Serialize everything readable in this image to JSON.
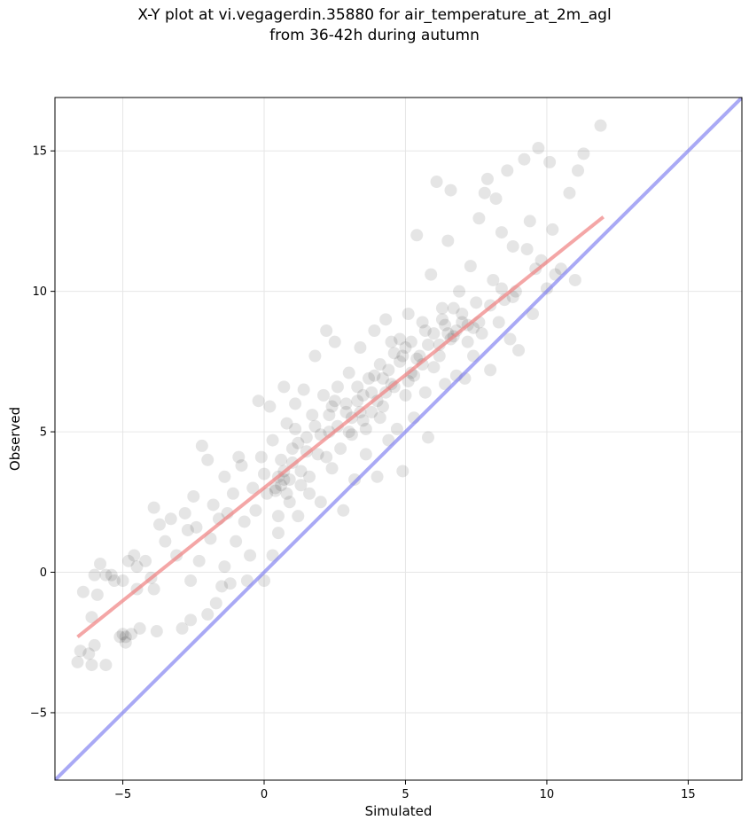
{
  "chart_data": {
    "type": "scatter",
    "title_lines": [
      "X-Y plot at vi.vegagerdin.35880 for air_temperature_at_2m_agl",
      "from 36-42h during autumn"
    ],
    "xlabel": "Simulated",
    "ylabel": "Observed",
    "xlim": [
      -7.4,
      16.9
    ],
    "ylim": [
      -7.4,
      16.9
    ],
    "xticks": [
      -5,
      0,
      5,
      10,
      15
    ],
    "yticks": [
      -5,
      0,
      5,
      10,
      15
    ],
    "xtick_labels": [
      "−5",
      "0",
      "5",
      "10",
      "15"
    ],
    "ytick_labels": [
      "−5",
      "0",
      "5",
      "10",
      "15"
    ],
    "grid": true,
    "colors": {
      "points": "#000000",
      "fit_line": "#f08080",
      "identity_line": "#7b7bf0",
      "grid": "#e6e6e6"
    },
    "identity_line": {
      "x": [
        -7.4,
        16.9
      ],
      "y": [
        -7.4,
        16.9
      ]
    },
    "fit_line": {
      "x": [
        -6.6,
        12.0
      ],
      "y": [
        -2.3,
        12.65
      ]
    },
    "points": [
      [
        -6.6,
        -3.2
      ],
      [
        -6.5,
        -2.8
      ],
      [
        -6.4,
        -0.7
      ],
      [
        -6.2,
        -2.9
      ],
      [
        -6.1,
        -1.6
      ],
      [
        -6.1,
        -3.3
      ],
      [
        -6.0,
        -0.1
      ],
      [
        -6.0,
        -2.6
      ],
      [
        -5.9,
        -0.8
      ],
      [
        -5.8,
        0.3
      ],
      [
        -5.6,
        -0.1
      ],
      [
        -5.6,
        -3.3
      ],
      [
        -5.4,
        -0.1
      ],
      [
        -5.3,
        -0.3
      ],
      [
        -5.1,
        -2.3
      ],
      [
        -5.0,
        -2.2
      ],
      [
        -5.0,
        -0.3
      ],
      [
        -4.9,
        -2.5
      ],
      [
        -4.9,
        -2.3
      ],
      [
        -4.8,
        0.4
      ],
      [
        -4.7,
        -2.2
      ],
      [
        -4.6,
        0.6
      ],
      [
        -4.5,
        -0.6
      ],
      [
        -4.5,
        0.2
      ],
      [
        -4.4,
        -2.0
      ],
      [
        -4.2,
        0.4
      ],
      [
        -4.0,
        -0.2
      ],
      [
        -3.9,
        -0.6
      ],
      [
        -3.9,
        2.3
      ],
      [
        -3.8,
        -2.1
      ],
      [
        -3.7,
        1.7
      ],
      [
        -3.5,
        1.1
      ],
      [
        -3.3,
        1.9
      ],
      [
        -3.1,
        0.6
      ],
      [
        -2.9,
        -2.0
      ],
      [
        -2.8,
        2.1
      ],
      [
        -2.7,
        1.5
      ],
      [
        -2.6,
        -0.3
      ],
      [
        -2.6,
        -1.7
      ],
      [
        -2.5,
        2.7
      ],
      [
        -2.4,
        1.6
      ],
      [
        -2.3,
        0.4
      ],
      [
        -2.2,
        4.5
      ],
      [
        -2.0,
        -1.5
      ],
      [
        -2.0,
        4.0
      ],
      [
        -1.9,
        1.2
      ],
      [
        -1.8,
        2.4
      ],
      [
        -1.7,
        -1.1
      ],
      [
        -1.6,
        1.9
      ],
      [
        -1.5,
        -0.5
      ],
      [
        -1.4,
        3.4
      ],
      [
        -1.4,
        0.2
      ],
      [
        -1.3,
        2.1
      ],
      [
        -1.2,
        -0.4
      ],
      [
        -1.1,
        2.8
      ],
      [
        -1.0,
        1.1
      ],
      [
        -0.9,
        4.1
      ],
      [
        -0.8,
        3.8
      ],
      [
        -0.7,
        1.8
      ],
      [
        -0.6,
        -0.3
      ],
      [
        -0.5,
        0.6
      ],
      [
        -0.4,
        3.0
      ],
      [
        -0.3,
        2.2
      ],
      [
        -0.2,
        6.1
      ],
      [
        -0.1,
        4.1
      ],
      [
        0.0,
        3.5
      ],
      [
        0.0,
        -0.3
      ],
      [
        0.1,
        2.8
      ],
      [
        0.2,
        5.9
      ],
      [
        0.3,
        0.6
      ],
      [
        0.3,
        4.7
      ],
      [
        0.4,
        3.0
      ],
      [
        0.5,
        1.4
      ],
      [
        0.5,
        2.0
      ],
      [
        0.6,
        4.0
      ],
      [
        0.7,
        6.6
      ],
      [
        0.7,
        3.3
      ],
      [
        0.8,
        5.3
      ],
      [
        0.9,
        2.5
      ],
      [
        1.0,
        4.4
      ],
      [
        1.1,
        6.0
      ],
      [
        1.2,
        2.0
      ],
      [
        1.3,
        3.6
      ],
      [
        1.4,
        6.5
      ],
      [
        1.5,
        4.8
      ],
      [
        1.6,
        2.8
      ],
      [
        1.7,
        5.6
      ],
      [
        1.8,
        7.7
      ],
      [
        1.9,
        4.2
      ],
      [
        2.0,
        2.5
      ],
      [
        2.1,
        6.3
      ],
      [
        2.2,
        8.6
      ],
      [
        2.3,
        5.0
      ],
      [
        2.4,
        3.7
      ],
      [
        2.5,
        8.2
      ],
      [
        2.6,
        6.6
      ],
      [
        2.7,
        4.4
      ],
      [
        2.8,
        2.2
      ],
      [
        2.9,
        5.7
      ],
      [
        3.0,
        7.1
      ],
      [
        3.1,
        4.9
      ],
      [
        3.2,
        3.3
      ],
      [
        3.3,
        6.1
      ],
      [
        3.4,
        8.0
      ],
      [
        3.5,
        5.4
      ],
      [
        3.6,
        4.2
      ],
      [
        3.7,
        6.9
      ],
      [
        3.8,
        5.7
      ],
      [
        3.9,
        8.6
      ],
      [
        4.0,
        3.4
      ],
      [
        4.1,
        7.4
      ],
      [
        4.2,
        5.9
      ],
      [
        4.3,
        9.0
      ],
      [
        4.4,
        4.7
      ],
      [
        4.5,
        6.7
      ],
      [
        4.6,
        7.8
      ],
      [
        4.7,
        5.1
      ],
      [
        4.8,
        8.3
      ],
      [
        4.9,
        3.6
      ],
      [
        5.0,
        6.3
      ],
      [
        5.1,
        9.2
      ],
      [
        5.2,
        7.1
      ],
      [
        5.3,
        5.5
      ],
      [
        5.4,
        12.0
      ],
      [
        5.5,
        7.7
      ],
      [
        5.6,
        8.9
      ],
      [
        5.7,
        6.4
      ],
      [
        5.8,
        4.8
      ],
      [
        5.9,
        10.6
      ],
      [
        6.0,
        7.3
      ],
      [
        6.1,
        13.9
      ],
      [
        6.2,
        8.1
      ],
      [
        6.3,
        9.4
      ],
      [
        6.4,
        6.7
      ],
      [
        6.5,
        11.8
      ],
      [
        6.6,
        13.6
      ],
      [
        6.7,
        8.4
      ],
      [
        6.8,
        7.0
      ],
      [
        6.9,
        10.0
      ],
      [
        7.0,
        9.2
      ],
      [
        7.1,
        6.9
      ],
      [
        7.2,
        8.8
      ],
      [
        7.3,
        10.9
      ],
      [
        7.4,
        7.7
      ],
      [
        7.5,
        9.6
      ],
      [
        7.6,
        12.6
      ],
      [
        7.7,
        8.5
      ],
      [
        7.8,
        13.5
      ],
      [
        7.9,
        14.0
      ],
      [
        8.0,
        7.2
      ],
      [
        8.1,
        10.4
      ],
      [
        8.2,
        13.3
      ],
      [
        8.3,
        8.9
      ],
      [
        8.4,
        12.1
      ],
      [
        8.5,
        9.7
      ],
      [
        8.6,
        14.3
      ],
      [
        8.7,
        8.3
      ],
      [
        8.8,
        11.6
      ],
      [
        8.9,
        10.0
      ],
      [
        9.0,
        7.9
      ],
      [
        9.2,
        14.7
      ],
      [
        9.3,
        11.5
      ],
      [
        9.4,
        12.5
      ],
      [
        9.5,
        9.2
      ],
      [
        9.6,
        10.8
      ],
      [
        9.7,
        15.1
      ],
      [
        9.8,
        11.1
      ],
      [
        10.0,
        10.1
      ],
      [
        10.1,
        14.6
      ],
      [
        10.2,
        12.2
      ],
      [
        10.3,
        10.6
      ],
      [
        10.5,
        10.8
      ],
      [
        10.8,
        13.5
      ],
      [
        11.0,
        10.4
      ],
      [
        11.1,
        14.3
      ],
      [
        11.3,
        14.9
      ],
      [
        11.9,
        15.9
      ],
      [
        0.4,
        2.9
      ],
      [
        0.6,
        3.1
      ],
      [
        0.8,
        2.8
      ],
      [
        0.5,
        3.4
      ],
      [
        1.0,
        3.9
      ],
      [
        0.7,
        3.6
      ],
      [
        1.2,
        4.6
      ],
      [
        1.5,
        4.3
      ],
      [
        1.1,
        5.1
      ],
      [
        1.8,
        5.2
      ],
      [
        2.0,
        4.9
      ],
      [
        2.3,
        5.6
      ],
      [
        2.6,
        5.2
      ],
      [
        2.5,
        6.1
      ],
      [
        2.9,
        6.0
      ],
      [
        3.1,
        5.5
      ],
      [
        3.4,
        5.7
      ],
      [
        3.6,
        5.1
      ],
      [
        3.3,
        6.6
      ],
      [
        3.8,
        6.4
      ],
      [
        4.0,
        6.1
      ],
      [
        4.2,
        6.9
      ],
      [
        4.4,
        7.2
      ],
      [
        4.6,
        6.6
      ],
      [
        4.8,
        7.5
      ],
      [
        5.0,
        8.0
      ],
      [
        4.9,
        7.7
      ],
      [
        5.2,
        8.2
      ],
      [
        5.4,
        7.6
      ],
      [
        5.6,
        7.4
      ],
      [
        5.8,
        8.1
      ],
      [
        6.0,
        8.5
      ],
      [
        6.2,
        7.7
      ],
      [
        6.4,
        8.8
      ],
      [
        6.6,
        8.3
      ],
      [
        6.8,
        8.6
      ],
      [
        7.0,
        8.9
      ],
      [
        7.2,
        8.2
      ],
      [
        7.4,
        8.7
      ],
      [
        6.5,
        8.5
      ],
      [
        3.0,
        5.0
      ],
      [
        3.5,
        6.3
      ],
      [
        4.1,
        5.5
      ],
      [
        4.5,
        8.2
      ],
      [
        5.3,
        7.0
      ],
      [
        5.7,
        8.6
      ],
      [
        6.3,
        9.0
      ],
      [
        2.4,
        5.9
      ],
      [
        1.6,
        3.4
      ],
      [
        2.2,
        4.1
      ],
      [
        1.3,
        3.1
      ],
      [
        0.9,
        3.3
      ],
      [
        4.3,
        6.4
      ],
      [
        3.9,
        7.0
      ],
      [
        5.1,
        6.8
      ],
      [
        6.7,
        9.4
      ],
      [
        7.6,
        8.9
      ],
      [
        8.0,
        9.5
      ],
      [
        8.4,
        10.1
      ],
      [
        8.8,
        9.8
      ]
    ]
  }
}
